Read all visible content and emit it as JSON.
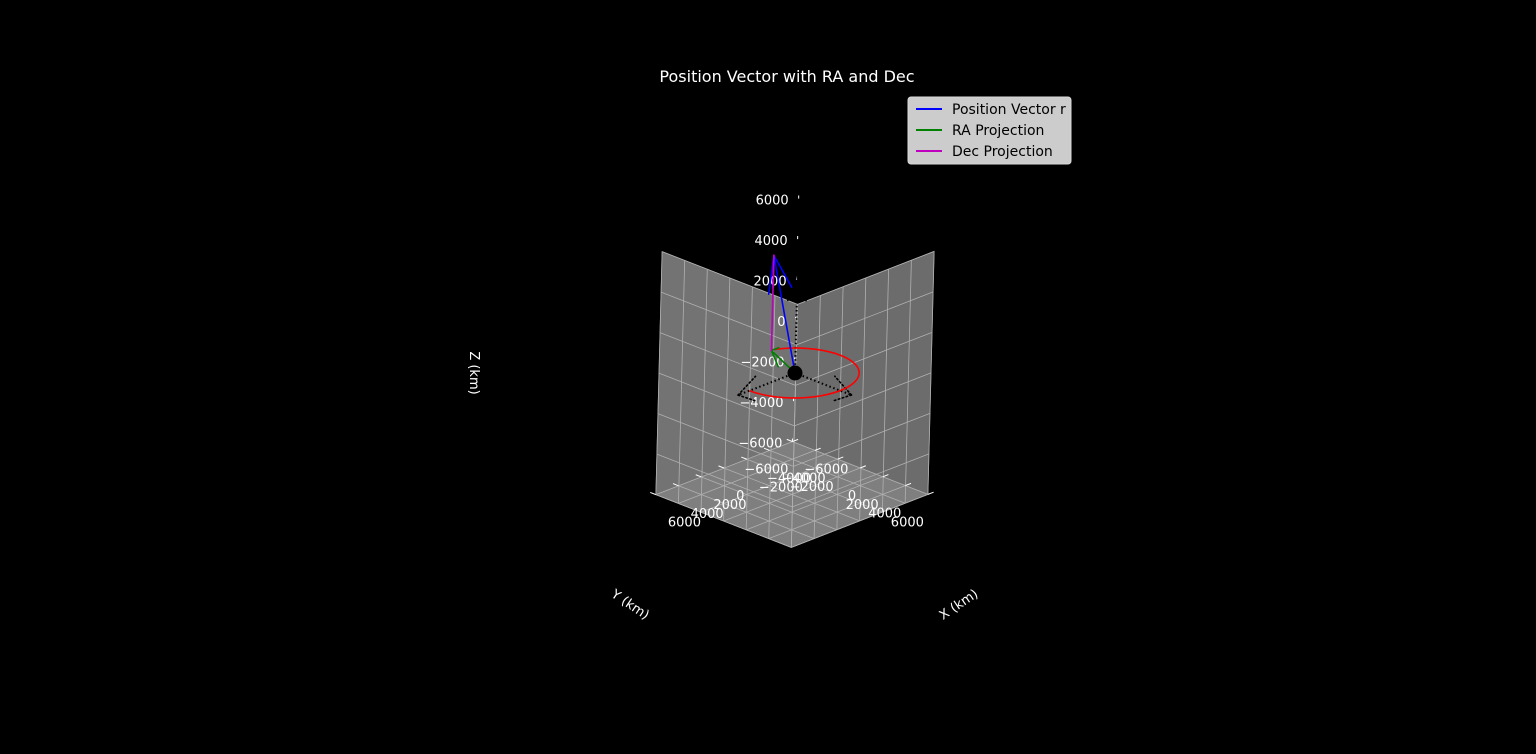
{
  "chart_data": {
    "type": "line",
    "projection": "3d",
    "title": "Position Vector with RA and Dec",
    "xlabel": "X (km)",
    "ylabel": "Y (km)",
    "zlabel": "Z (km)",
    "xlim": [
      -6000,
      6000
    ],
    "ylim": [
      -6000,
      6000
    ],
    "zlim": [
      -6000,
      6000
    ],
    "xticks": [
      "−6000",
      "−4000",
      "−2000",
      "0",
      "2000",
      "4000",
      "6000"
    ],
    "yticks": [
      "−6000",
      "−4000",
      "−2000",
      "0",
      "2000",
      "4000",
      "6000"
    ],
    "zticks": [
      "−6000",
      "−4000",
      "−2000",
      "0",
      "2000",
      "4000",
      "6000"
    ],
    "grid": true,
    "legend_position": "upper-right",
    "background_color": "#000000",
    "pane_color": "#7f7f7f",
    "series": [
      {
        "name": "Position Vector r",
        "color": "#0000ff",
        "start": [
          0,
          0,
          0
        ],
        "end": [
          -1500,
          -3600,
          4700
        ]
      },
      {
        "name": "RA Projection",
        "color": "#008000",
        "start": [
          0,
          0,
          0
        ],
        "end": [
          -1500,
          -3600,
          0
        ]
      },
      {
        "name": "Dec Projection",
        "color": "#bf00bf",
        "start": [
          -1500,
          -3600,
          0
        ],
        "end": [
          -1500,
          -3600,
          4700
        ]
      }
    ],
    "arcs": [
      {
        "color": "#ff0000",
        "center": [
          0,
          0,
          0
        ],
        "radius": 4000,
        "from_deg": 0,
        "to_deg": 247
      }
    ],
    "reference_axes": [
      {
        "color": "#000000",
        "style": "dotted",
        "end": [
          5000,
          0,
          0
        ]
      },
      {
        "color": "#000000",
        "style": "dotted",
        "end": [
          0,
          5000,
          0
        ]
      },
      {
        "color": "#000000",
        "style": "dotted",
        "end": [
          0,
          0,
          5000
        ]
      }
    ],
    "origin_marker": {
      "color": "#000000",
      "position": [
        0,
        0,
        0
      ]
    }
  }
}
